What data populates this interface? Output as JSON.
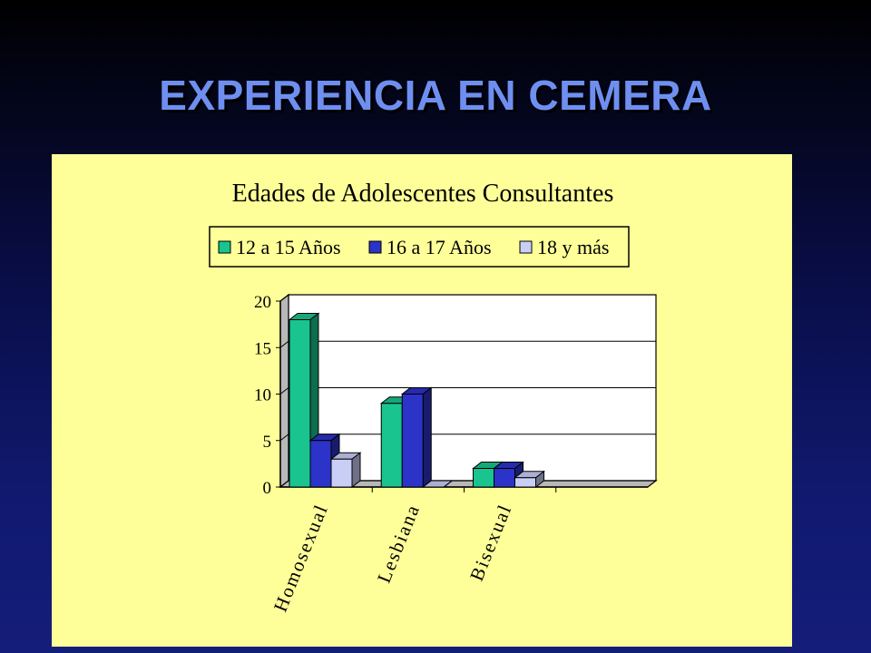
{
  "slide": {
    "title": "EXPERIENCIA EN CEMERA"
  },
  "colors": {
    "series": [
      "#19c48f",
      "#2b33c8",
      "#c9cef7"
    ],
    "panel_bg": "#ffff99",
    "title_color": "#6f8ff0"
  },
  "chart_data": {
    "type": "bar",
    "title": "Edades de Adolescentes Consultantes",
    "categories": [
      "Homosexual",
      "Lesbiana",
      "Bisexual"
    ],
    "series": [
      {
        "name": "12 a 15 Años",
        "values": [
          18,
          9,
          2
        ]
      },
      {
        "name": "16 a 17 Años",
        "values": [
          5,
          10,
          2
        ]
      },
      {
        "name": "18 y más",
        "values": [
          3,
          0,
          1
        ]
      }
    ],
    "yticks": [
      0,
      5,
      10,
      15,
      20
    ],
    "ylim": [
      0,
      20
    ],
    "xlabel": "",
    "ylabel": "",
    "grid": true,
    "legend_position": "top",
    "style": "3d-clustered-column"
  }
}
